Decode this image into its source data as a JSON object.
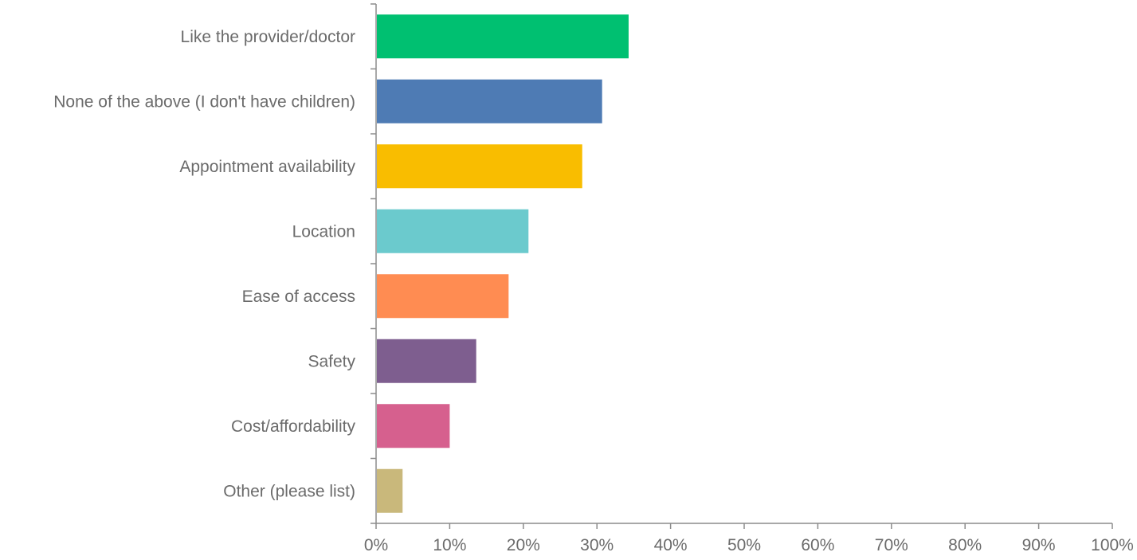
{
  "chart_data": {
    "type": "bar",
    "orientation": "horizontal",
    "title": "",
    "xlabel": "",
    "ylabel": "",
    "categories": [
      "Like the provider/doctor",
      "None of the above (I don't have children)",
      "Appointment availability",
      "Location",
      "Ease of access",
      "Safety",
      "Cost/affordability",
      "Other (please list)"
    ],
    "values": [
      34.3,
      30.7,
      28.0,
      20.7,
      18.0,
      13.6,
      10.0,
      3.6
    ],
    "colors": [
      "#00c071",
      "#4e7bb4",
      "#f9bd00",
      "#6bcacd",
      "#ff8c52",
      "#7e5e8f",
      "#d6608e",
      "#c9b87b"
    ],
    "xlim": [
      0,
      100
    ],
    "xticks": [
      "0%",
      "10%",
      "20%",
      "30%",
      "40%",
      "50%",
      "60%",
      "70%",
      "80%",
      "90%",
      "100%"
    ],
    "grid": false,
    "legend": "none"
  }
}
